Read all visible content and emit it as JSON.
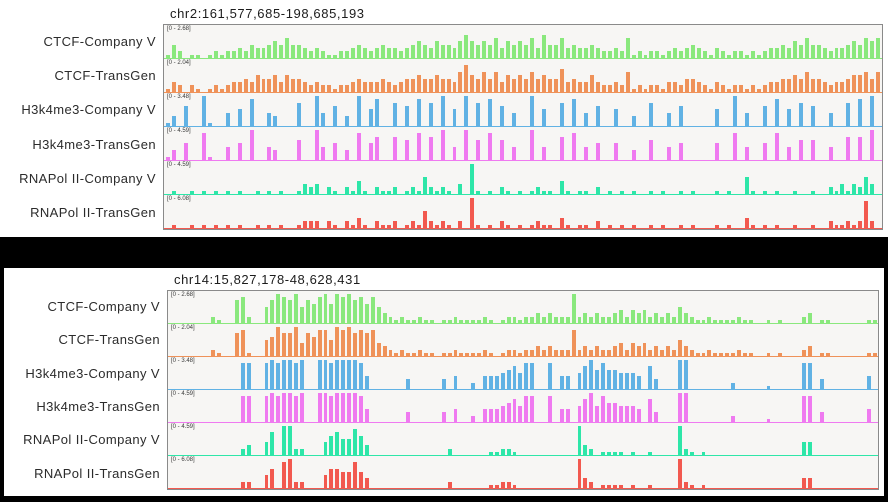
{
  "colors": {
    "frame_background": "#000000",
    "slide_background": "#ffffff",
    "panel_background": "#f7f6f4",
    "panel_border": "#8a8a8a",
    "title_text": "#1c1c1c",
    "label_text": "#2b2b2b"
  },
  "chart_data": [
    {
      "type": "area",
      "title": "chr2:161,577,685-198,685,193",
      "region": {
        "chromosome": "chr2",
        "start": 161577685,
        "end": 198685193
      },
      "grid": false,
      "legend_position": "left-row-labels",
      "bin_encoding": "each character 0-9 is one genomic bin; height = digit/9 * ymax",
      "series": [
        {
          "name": "CTCF-Company V",
          "scale_label": "[0 - 2.68]",
          "ymax": 2.68,
          "color": "#8ae87d",
          "values_0to9": "142011012122324334546443232112234323433234543544357545463545463744634334322326121221232343213212212123343546443233454656"
        },
        {
          "name": "CTCF-TransGen",
          "scale_label": "[0 - 2.04]",
          "ymax": 2.04,
          "color": "#ef9259",
          "values_0to9": "132021012123343544535443232212234333432344544544368546463545464544734335322326121221332443213212212123344546443233455646"
        },
        {
          "name": "H3k4me3-Company V",
          "scale_label": "[0 - 3.48]",
          "ymax": 3.48,
          "color": "#61b2e4",
          "values_0to9": "130600910040508004300070094060309058007060807090509070806040090500708040600500300700406000005009040060805070600400708090"
        },
        {
          "name": "H3k4me3-TransGen",
          "scale_label": "[0 - 4.59]",
          "ymax": 4.59,
          "color": "#ef7af0",
          "values_0to9": "130500810040509004300060094050308057007060807090409060806040090400708040500500300600405000005008040050804060600400707090"
        },
        {
          "name": "RNAPol II-Company V",
          "scale_label": "[0 - 4.59]",
          "ymax": 4.59,
          "color": "#2ee6a8",
          "values_0to9": "010010101010100101010013230210214102112012152121030910102101012110410110201010100101001010001010051010100100100213132530"
        },
        {
          "name": "RNAPol II-TransGen",
          "scale_label": "[0 - 6.08]",
          "ymax": 6.08,
          "color": "#f2594f",
          "values_0to9": "010010101010100101010012220210213102112012152121020910102101012110310110201010100101001010001010031010100100100211212820"
        }
      ]
    },
    {
      "type": "area",
      "title": "chr14:15,827,178-48,628,431",
      "region": {
        "chromosome": "chr14",
        "start": 15827178,
        "end": 48628431
      },
      "grid": false,
      "legend_position": "left-row-labels",
      "bin_encoding": "each character 0-9 is one genomic bin; height = digit/9 * ymax",
      "series": [
        {
          "name": "CTCF-Company V",
          "scale_label": "[0 - 2.68]",
          "ymax": 2.68,
          "color": "#8ae87d",
          "values_0to9": "000000021007820057987957689698978685321211211011211112101221223232229232322342434232325321121111211001010002301100000011"
        },
        {
          "name": "CTCF-TransGen",
          "scale_label": "[0 - 2.04]",
          "ymax": 2.04,
          "color": "#ef9259",
          "values_0to9": "000000021007810056977947688598978784321211211011211112101221223232228232322342434232325321121111211001010002301100000011"
        },
        {
          "name": "H3k4me3-Company V",
          "scale_label": "[0 - 3.48]",
          "ymax": 3.48,
          "color": "#61b2e4",
          "values_0to9": "000000000000880089899890099899998400000030000030400204445675880080440579686655540730009900000002000001000008803000000040"
        },
        {
          "name": "H3k4me3-TransGen",
          "scale_label": "[0 - 4.59]",
          "ymax": 4.59,
          "color": "#ef7af0",
          "values_0to9": "000000000000880089899890099899998400000030000030400204445675880080440579586655540730009900000002000001000008803000000040"
        },
        {
          "name": "RNAPol II-Company V",
          "scale_label": "[0 - 4.59]",
          "ymax": 4.59,
          "color": "#2ee6a8",
          "values_0to9": "000000000000230047099220004675586300000000000002000000112210000000000932011110100100009210100000000000000004400000000000"
        },
        {
          "name": "RNAPol II-TransGen",
          "scale_label": "[0 - 6.08]",
          "ymax": 6.08,
          "color": "#f2594f",
          "values_0to9": "000000000000220046089220004665585300000000000002000000112210000000000932011110100100009210100000000000000003300000000000"
        }
      ]
    }
  ]
}
